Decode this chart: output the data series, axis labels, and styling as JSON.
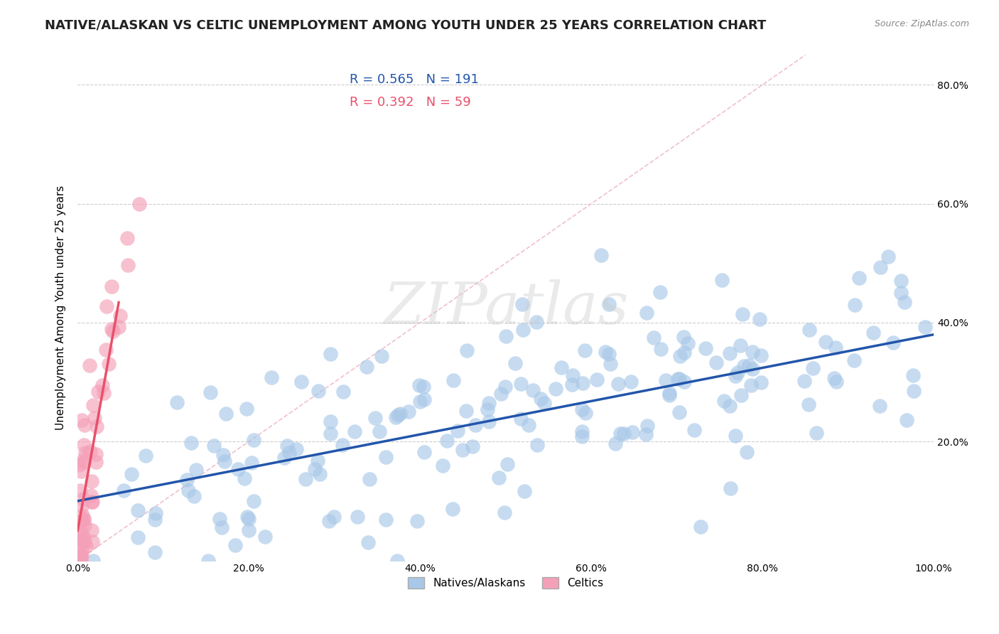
{
  "title": "NATIVE/ALASKAN VS CELTIC UNEMPLOYMENT AMONG YOUTH UNDER 25 YEARS CORRELATION CHART",
  "source": "Source: ZipAtlas.com",
  "ylabel": "Unemployment Among Youth under 25 years",
  "xlim": [
    0,
    1.0
  ],
  "ylim": [
    0,
    0.85
  ],
  "xticks": [
    0.0,
    0.2,
    0.4,
    0.6,
    0.8,
    1.0
  ],
  "xtick_labels": [
    "0.0%",
    "20.0%",
    "40.0%",
    "60.0%",
    "80.0%",
    "100.0%"
  ],
  "yticks": [
    0.2,
    0.4,
    0.6,
    0.8
  ],
  "right_ytick_labels": [
    "20.0%",
    "40.0%",
    "60.0%",
    "80.0%"
  ],
  "legend_r1": "R = 0.565",
  "legend_n1": "N = 191",
  "legend_r2": "R = 0.392",
  "legend_n2": "N = 59",
  "blue_color": "#A8C8E8",
  "pink_color": "#F4A0B8",
  "trend_blue": "#2255AA",
  "trend_pink": "#E8506A",
  "ref_line_color": "#F0C0CC",
  "background_color": "#FFFFFF",
  "watermark": "ZIPatlas",
  "title_fontsize": 13,
  "axis_label_fontsize": 11,
  "native_r": 0.565,
  "native_n": 191,
  "celtic_r": 0.392,
  "celtic_n": 59,
  "native_slope": 0.28,
  "native_intercept": 0.1,
  "celtic_slope": 8.0,
  "celtic_intercept": 0.05
}
